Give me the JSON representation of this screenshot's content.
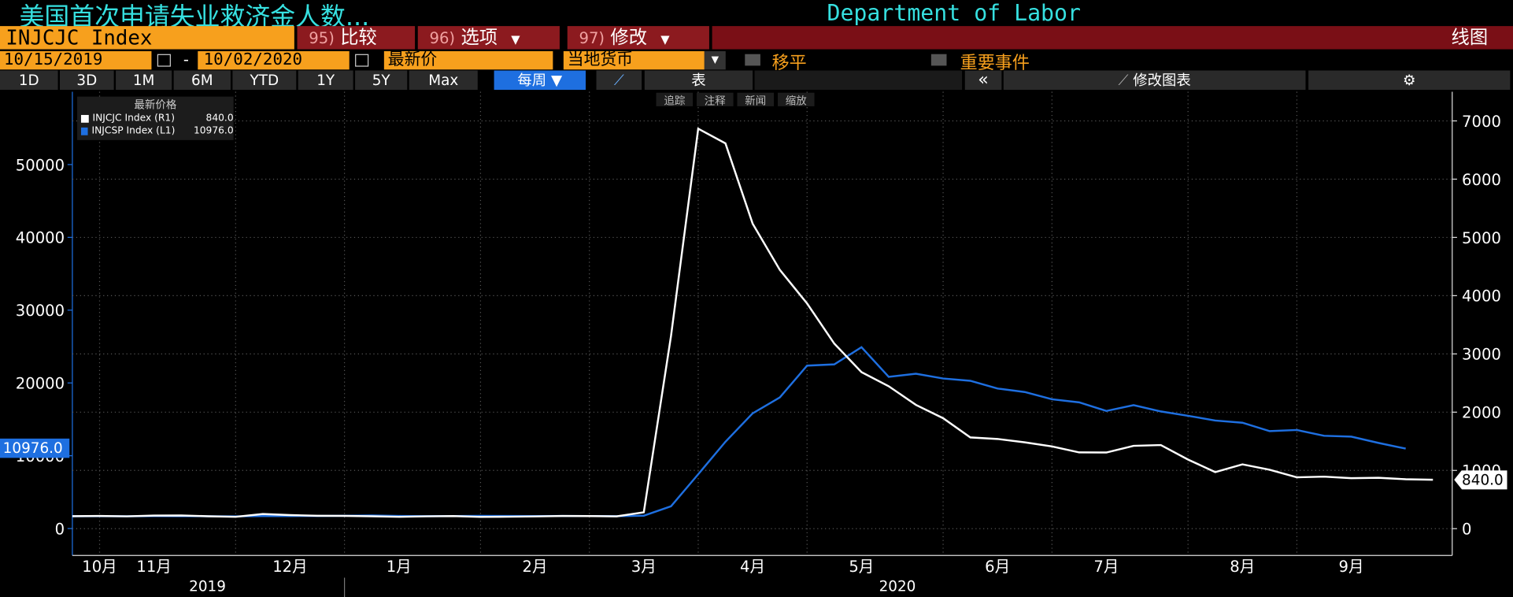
{
  "header": {
    "title": "美国首次申请失业救济金人数...",
    "source": "Department of Labor"
  },
  "toolbar": {
    "ticker": "INJCJC Index",
    "menus": [
      {
        "num": "95)",
        "label": "比较"
      },
      {
        "num": "96)",
        "label": "选项"
      },
      {
        "num": "97)",
        "label": "修改"
      }
    ],
    "chart_type_label": "线图",
    "start_date": "10/15/2019",
    "date_sep": "-",
    "end_date": "10/02/2020",
    "price_field": "最新价",
    "currency": "当地货币",
    "smooth": "移平",
    "events": "重要事件",
    "periods": [
      "1D",
      "3D",
      "1M",
      "6M",
      "YTD",
      "1Y",
      "5Y",
      "Max"
    ],
    "frequency": "每周",
    "table": "表",
    "edit_chart": "修改图表",
    "chart_tools": [
      "追踪",
      "注释",
      "新闻",
      "缩放"
    ],
    "legend_title": "最新价格"
  },
  "chart_data": {
    "type": "line",
    "categories": [
      null,
      "10月",
      null,
      "11月",
      null,
      null,
      null,
      null,
      "12月",
      null,
      null,
      null,
      "1月",
      null,
      null,
      null,
      null,
      "2月",
      null,
      null,
      null,
      "3月",
      null,
      null,
      null,
      "4月",
      null,
      null,
      null,
      "5月",
      null,
      null,
      null,
      null,
      "6月",
      null,
      null,
      null,
      "7月",
      null,
      null,
      null,
      null,
      "8月",
      null,
      null,
      null,
      "9月",
      null,
      null,
      null
    ],
    "year_labels": [
      "2019",
      "2020"
    ],
    "series": [
      {
        "name": "INJCJC Index (R1)",
        "color": "#ffffff",
        "axis": "y2",
        "values": [
          215,
          218,
          211,
          225,
          227,
          213,
          203,
          252,
          234,
          222,
          220,
          214,
          204,
          211,
          216,
          202,
          205,
          210,
          219,
          216,
          211,
          282,
          3307,
          6867,
          6615,
          5237,
          4442,
          3867,
          3176,
          2687,
          2446,
          2126,
          1897,
          1566,
          1540,
          1482,
          1413,
          1310,
          1307,
          1422,
          1435,
          1186,
          971,
          1104,
          1011,
          881,
          893,
          866,
          873,
          849,
          840
        ],
        "value_labels": [
          null,
          null,
          null,
          null,
          null,
          null,
          null,
          null,
          null,
          null,
          null,
          null,
          null,
          null,
          null,
          null,
          null,
          null,
          null,
          null,
          null,
          null,
          null,
          null,
          null,
          null,
          null,
          null,
          null,
          null,
          null,
          null,
          null,
          null,
          null,
          null,
          null,
          null,
          null,
          null,
          null,
          null,
          null,
          null,
          null,
          null,
          null,
          null,
          null,
          null,
          "840.0"
        ]
      },
      {
        "name": "INJCSP Index (L1)",
        "color": "#1e6fe0",
        "axis": "y",
        "values": [
          1690,
          1695,
          1690,
          1720,
          1700,
          1690,
          1670,
          1720,
          1710,
          1730,
          1750,
          1790,
          1730,
          1700,
          1710,
          1740,
          1730,
          1720,
          1730,
          1720,
          1700,
          1770,
          3059,
          7455,
          11914,
          15819,
          18011,
          22377,
          22548,
          24912,
          20838,
          21268,
          20606,
          20289,
          19231,
          18760,
          17760,
          17338,
          16151,
          16951,
          16090,
          15486,
          14844,
          14535,
          13385,
          13544,
          12747,
          12628,
          11767,
          10976,
          null
        ],
        "value_labels": [
          null,
          null,
          null,
          null,
          null,
          null,
          null,
          null,
          null,
          null,
          null,
          null,
          null,
          null,
          null,
          null,
          null,
          null,
          null,
          null,
          null,
          null,
          null,
          null,
          null,
          null,
          null,
          null,
          null,
          null,
          null,
          null,
          null,
          null,
          null,
          null,
          null,
          null,
          null,
          null,
          null,
          null,
          null,
          null,
          null,
          null,
          null,
          null,
          null,
          "10976.0",
          null
        ]
      }
    ],
    "ylim": [
      -3700,
      60000
    ],
    "yticks": [
      0,
      10000,
      20000,
      30000,
      40000,
      50000
    ],
    "y2lim": [
      -460,
      7500
    ],
    "y2ticks": [
      0,
      1000,
      2000,
      3000,
      4000,
      5000,
      6000,
      7000
    ],
    "grid": true
  }
}
